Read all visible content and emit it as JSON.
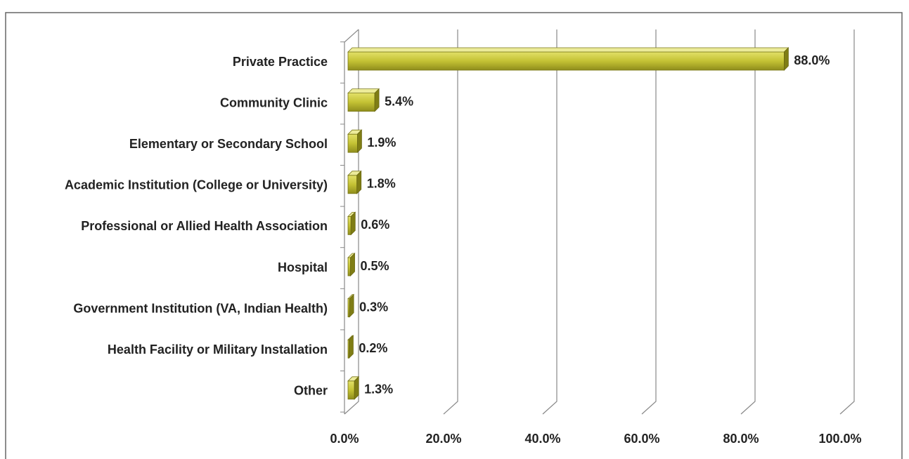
{
  "chart_data": {
    "type": "bar",
    "orientation": "horizontal",
    "categories": [
      "Private Practice",
      "Community Clinic",
      "Elementary or Secondary School",
      "Academic Institution (College or University)",
      "Professional or Allied Health Association",
      "Hospital",
      "Government Institution (VA, Indian Health)",
      "Health Facility or Military Installation",
      "Other"
    ],
    "values": [
      88.0,
      5.4,
      1.9,
      1.8,
      0.6,
      0.5,
      0.3,
      0.2,
      1.3
    ],
    "value_labels": [
      "88.0%",
      "5.4%",
      "1.9%",
      "1.8%",
      "0.6%",
      "0.5%",
      "0.3%",
      "0.2%",
      "1.3%"
    ],
    "color": "#c4c234",
    "xlim": [
      0,
      100
    ],
    "xticks": [
      {
        "value": 0,
        "label": "0.0%"
      },
      {
        "value": 20,
        "label": "20.0%"
      },
      {
        "value": 40,
        "label": "40.0%"
      },
      {
        "value": 60,
        "label": "60.0%"
      },
      {
        "value": 80,
        "label": "80.0%"
      },
      {
        "value": 100,
        "label": "100.0%"
      }
    ],
    "grid": true
  }
}
